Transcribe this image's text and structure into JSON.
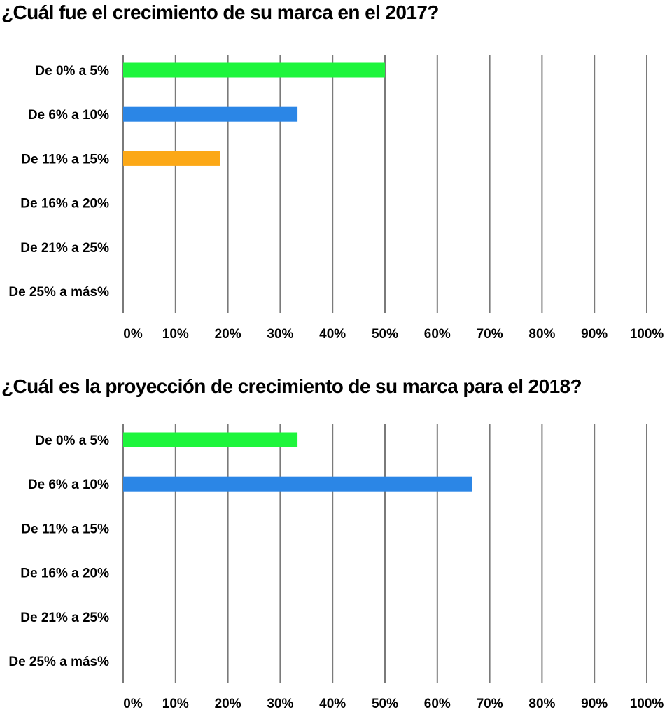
{
  "chart_data": [
    {
      "type": "bar",
      "orientation": "horizontal",
      "title": "¿Cuál fue el crecimiento de su marca en el 2017?",
      "categories": [
        "De 0% a 5%",
        "De 6% a 10%",
        "De 11% a 15%",
        "De 16% a 20%",
        "De 21% a 25%",
        "De 25% a más%"
      ],
      "values": [
        50,
        33.3,
        18.5,
        0,
        0,
        0
      ],
      "colors": [
        "#1ef53c",
        "#2b86e6",
        "#fca816",
        null,
        null,
        null
      ],
      "xlim": [
        0,
        100
      ],
      "xticks": [
        "0%",
        "10%",
        "20%",
        "30%",
        "40%",
        "50%",
        "60%",
        "70%",
        "80%",
        "90%",
        "100%"
      ],
      "grid": true
    },
    {
      "type": "bar",
      "orientation": "horizontal",
      "title": "¿Cuál es la proyección de crecimiento de su marca para el 2018?",
      "categories": [
        "De 0% a 5%",
        "De 6% a 10%",
        "De 11% a 15%",
        "De 16% a 20%",
        "De 21% a 25%",
        "De 25% a más%"
      ],
      "values": [
        33.3,
        66.7,
        0,
        0,
        0,
        0
      ],
      "colors": [
        "#1ef53c",
        "#2b86e6",
        null,
        null,
        null,
        null
      ],
      "xlim": [
        0,
        100
      ],
      "xticks": [
        "0%",
        "10%",
        "20%",
        "30%",
        "40%",
        "50%",
        "60%",
        "70%",
        "80%",
        "90%",
        "100%"
      ],
      "grid": true
    }
  ]
}
